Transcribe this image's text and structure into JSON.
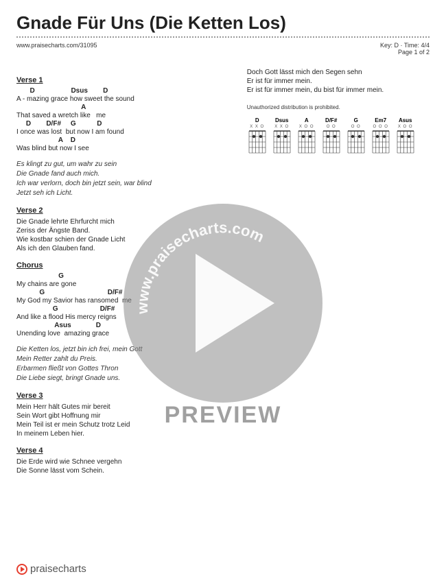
{
  "title": "Gnade Für Uns (Die Ketten Los)",
  "url": "www.praisecharts.com/31095",
  "key_label": "Key: D · Time: 4/4",
  "page_label": "Page 1 of 2",
  "verse1_title": "Verse 1",
  "v1_c1": "       D                   Dsus        D",
  "v1_l1": "A - mazing grace how sweet the sound",
  "v1_c2": "                                  A",
  "v1_l2": "That saved a wretch like   me",
  "v1_c3": "     D        D/F#     G           D",
  "v1_l3": "I once was lost  but now I am found",
  "v1_c4": "                      A    D",
  "v1_l4": "Was blind but now I see",
  "v1_de1": "Es klingt zu gut, um wahr zu sein",
  "v1_de2": "Die Gnade fand auch mich.",
  "v1_de3": "Ich war verlorn, doch bin jetzt sein, war blind",
  "v1_de4": "Jetzt seh ich Licht.",
  "verse2_title": "Verse 2",
  "v2_l1": "Die Gnade lehrte Ehrfurcht mich",
  "v2_l2": "Zeriss der Ängste Band.",
  "v2_l3": "Wie kostbar schien der Gnade Licht",
  "v2_l4": "Als ich den Glauben fand.",
  "chorus_title": "Chorus",
  "ch_c1": "                      G",
  "ch_l1": "My chains are gone",
  "ch_c2": "            G                                 D/F#",
  "ch_l2": "My God my Savior has ransomed  me",
  "ch_c3": "                   G                      D/F#",
  "ch_l3": "And like a flood His mercy reigns",
  "ch_c4": "                    Asus             D",
  "ch_l4": "Unending love  amazing grace",
  "ch_de1": "Die Ketten los, jetzt bin ich frei, mein Gott",
  "ch_de2": "Mein Retter zahlt du Preis.",
  "ch_de3": "Erbarmen fließt von Gottes Thron",
  "ch_de4": "Die Liebe siegt, bringt Gnade uns.",
  "verse3_title": "Verse 3",
  "v3_l1": "Mein Herr hält Gutes mir bereit",
  "v3_l2": "Sein Wort gibt Hoffnung mir",
  "v3_l3": "Mein Teil ist er mein Schutz trotz Leid",
  "v3_l4": "In meinem Leben hier.",
  "verse4_title": "Verse 4",
  "v4_l1": "Die Erde wird wie Schnee vergehn",
  "v4_l2": "Die Sonne lässt vom Schein.",
  "r_l1": "Doch Gott lässt mich den Segen sehn",
  "r_l2": "Er ist für immer mein.",
  "r_l3": "Er ist für immer mein, du bist für immer mein.",
  "disclaimer": "Unauthorized distribution is prohibited.",
  "chords": [
    {
      "name": "D",
      "fing": "X X O"
    },
    {
      "name": "Dsus",
      "fing": "X X O"
    },
    {
      "name": "A",
      "fing": "X O   O"
    },
    {
      "name": "D/F#",
      "fing": "  O O"
    },
    {
      "name": "G",
      "fing": "    O O"
    },
    {
      "name": "Em7",
      "fing": "O   O O"
    },
    {
      "name": "Asus",
      "fing": "X O   O"
    }
  ],
  "watermark_url": "www.praisecharts.com",
  "preview": "PREVIEW",
  "footer": "praisecharts"
}
